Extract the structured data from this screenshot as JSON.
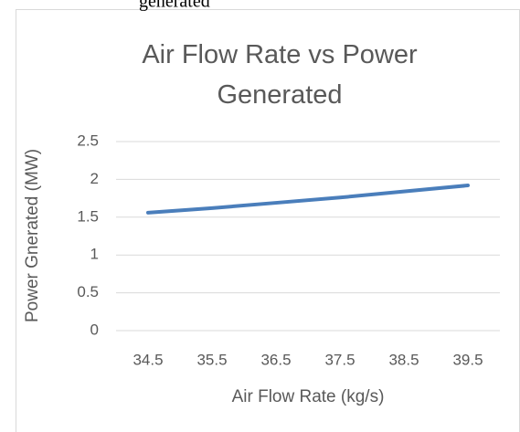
{
  "fragment": "generated",
  "chart_data": {
    "type": "line",
    "title": "Air Flow Rate vs Power Generated",
    "x_label": "Air Flow Rate (kg/s)",
    "y_label": "Power Gnerated (MW)",
    "categories": [
      "34.5",
      "35.5",
      "36.5",
      "37.5",
      "38.5",
      "39.5"
    ],
    "values": [
      1.56,
      1.62,
      1.69,
      1.76,
      1.84,
      1.92
    ],
    "color": "#4a7ebb",
    "ylim": [
      0,
      2.5
    ],
    "yticks": [
      0,
      0.5,
      1,
      1.5,
      2,
      2.5
    ],
    "grid": true
  }
}
